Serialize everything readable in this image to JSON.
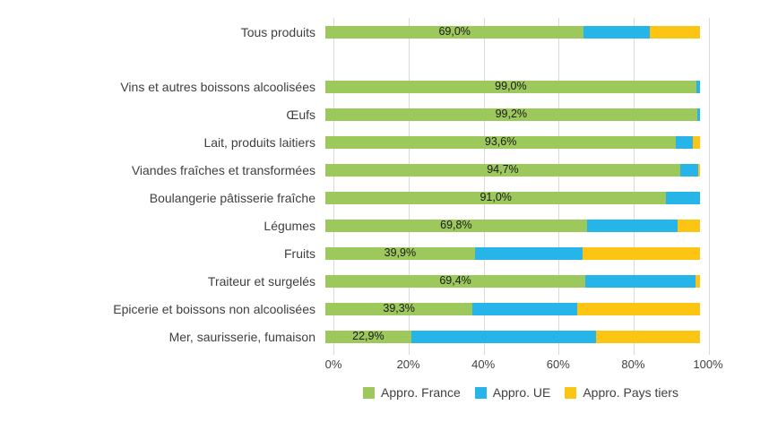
{
  "chart_data": {
    "type": "bar",
    "orientation": "horizontal",
    "stacked": true,
    "title": "",
    "xlabel": "",
    "ylabel": "",
    "xlim": [
      0,
      100
    ],
    "grid": true,
    "x_tick_labels": [
      "0%",
      "20%",
      "40%",
      "60%",
      "80%",
      "100%"
    ],
    "x_tick_values": [
      0,
      20,
      40,
      60,
      80,
      100
    ],
    "legend_position": "bottom",
    "series_names": [
      "Appro. France",
      "Appro. UE",
      "Appro. Pays tiers"
    ],
    "legend": [
      {
        "name": "Appro. France",
        "color": "#9cc85c"
      },
      {
        "name": "Appro. UE",
        "color": "#27b4e8"
      },
      {
        "name": "Appro. Pays tiers",
        "color": "#fcc513"
      }
    ],
    "rows": [
      {
        "category": "Tous produits",
        "value_label": "69,0%",
        "france": 69.0,
        "ue": 17.5,
        "tiers": 13.5,
        "gap_after": true
      },
      {
        "category": "Vins et autres boissons alcoolisées",
        "value_label": "99,0%",
        "france": 99.0,
        "ue": 1.0,
        "tiers": 0,
        "gap_after": false
      },
      {
        "category": "Œufs",
        "value_label": "99,2%",
        "france": 99.2,
        "ue": 0.8,
        "tiers": 0,
        "gap_after": false
      },
      {
        "category": "Lait, produits laitiers",
        "value_label": "93,6%",
        "france": 93.6,
        "ue": 4.4,
        "tiers": 2.0,
        "gap_after": false
      },
      {
        "category": "Viandes fraîches et transformées",
        "value_label": "94,7%",
        "france": 94.7,
        "ue": 4.8,
        "tiers": 0.5,
        "gap_after": false
      },
      {
        "category": "Boulangerie pâtisserie fraîche",
        "value_label": "91,0%",
        "france": 91.0,
        "ue": 9.0,
        "tiers": 0,
        "gap_after": false
      },
      {
        "category": "Légumes",
        "value_label": "69,8%",
        "france": 69.8,
        "ue": 24.2,
        "tiers": 6.0,
        "gap_after": false
      },
      {
        "category": "Fruits",
        "value_label": "39,9%",
        "france": 39.9,
        "ue": 28.8,
        "tiers": 31.3,
        "gap_after": false
      },
      {
        "category": "Traiteur et surgelés",
        "value_label": "69,4%",
        "france": 69.4,
        "ue": 29.4,
        "tiers": 1.2,
        "gap_after": false
      },
      {
        "category": "Epicerie et boissons non alcoolisées",
        "value_label": "39,3%",
        "france": 39.3,
        "ue": 27.9,
        "tiers": 32.8,
        "gap_after": false
      },
      {
        "category": "Mer, saurisserie, fumaison",
        "value_label": "22,9%",
        "france": 22.9,
        "ue": 49.3,
        "tiers": 27.8,
        "gap_after": false
      }
    ]
  },
  "colors": {
    "france": "#9cc85c",
    "ue": "#27b4e8",
    "tiers": "#fcc513",
    "gridline": "#d9d9d9",
    "text": "#3f3f3f"
  }
}
